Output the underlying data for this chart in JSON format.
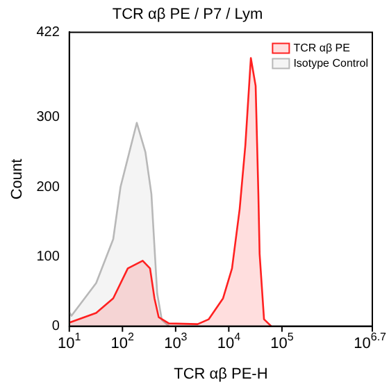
{
  "chart_data": {
    "type": "area",
    "title": "TCR αβ PE / P7 / Lym",
    "xlabel": "TCR αβ PE-H",
    "ylabel": "Count",
    "log": "x",
    "grid": false,
    "legend": "top right",
    "marker": "none",
    "xlim": [
      10,
      5011872
    ],
    "xticks": [
      {
        "value": 10,
        "label": "10$^{1}$"
      },
      {
        "value": 100,
        "label": "10$^{2}$"
      },
      {
        "value": 1000,
        "label": "10$^{3}$"
      },
      {
        "value": 10000,
        "label": "10$^{4}$"
      },
      {
        "value": 100000,
        "label": "10$^{5}$"
      },
      {
        "value": 5011872,
        "label": "10$^{6.7}$"
      }
    ],
    "ylim": [
      0,
      422
    ],
    "yticks": [
      0,
      100,
      200,
      300,
      422
    ],
    "series": [
      {
        "name": "TCR αβ PE",
        "color": "#ff2020",
        "x": [
          10,
          32,
          67,
          126,
          240,
          330,
          400,
          480,
          750,
          2600,
          4200,
          7800,
          11500,
          16000,
          20500,
          26000,
          32000,
          36000,
          38000,
          46000,
          63000
        ],
        "values": [
          5,
          19,
          40,
          83,
          94,
          83,
          40,
          13,
          4,
          3,
          10,
          40,
          83,
          168,
          260,
          385,
          345,
          190,
          104,
          10,
          0
        ]
      },
      {
        "name": "Isotype Control",
        "color": "#b8b8b8",
        "x": [
          10,
          11,
          32,
          67,
          92,
          125,
          186,
          270,
          350,
          450,
          550,
          750
        ],
        "values": [
          20,
          15,
          62,
          125,
          200,
          240,
          292,
          250,
          190,
          47,
          9,
          0
        ]
      }
    ]
  }
}
